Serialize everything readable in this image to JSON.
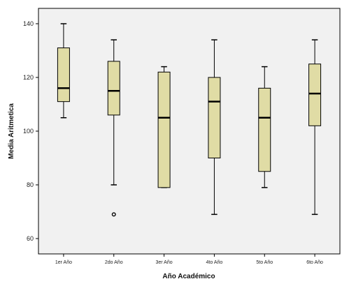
{
  "chart_data": {
    "type": "boxplot",
    "xlabel": "Año Académico",
    "ylabel": "Media Aritmetica",
    "ylim": [
      55,
      145
    ],
    "yticks": [
      60,
      80,
      100,
      120,
      140
    ],
    "grid": false,
    "legend": "none",
    "box_color": "#e0dca5",
    "box_stroke": "#000000",
    "plot_background": "#f1f1f1",
    "categories": [
      "1er Año",
      "2do Año",
      "3er Año",
      "4to Año",
      "5to Año",
      "6to Año"
    ],
    "boxes": [
      {
        "min": 105,
        "q1": 111,
        "median": 116,
        "q3": 131,
        "max": 140,
        "outliers": []
      },
      {
        "min": 80,
        "q1": 106,
        "median": 115,
        "q3": 126,
        "max": 134,
        "outliers": [
          69
        ]
      },
      {
        "min": 79,
        "q1": 79,
        "median": 105,
        "q3": 122,
        "max": 124,
        "outliers": []
      },
      {
        "min": 69,
        "q1": 90,
        "median": 111,
        "q3": 120,
        "max": 134,
        "outliers": []
      },
      {
        "min": 79,
        "q1": 85,
        "median": 105,
        "q3": 116,
        "max": 124,
        "outliers": []
      },
      {
        "min": 69,
        "q1": 102,
        "median": 114,
        "q3": 125,
        "max": 134,
        "outliers": []
      }
    ]
  }
}
